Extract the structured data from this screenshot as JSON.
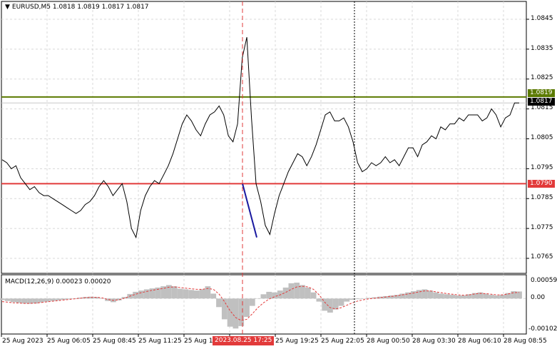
{
  "header": {
    "symbol_label": "EURUSD,M5",
    "open": "1.0818",
    "high": "1.0819",
    "low": "1.0817",
    "close": "1.0817"
  },
  "price_axis": {
    "labels": [
      "1.0845",
      "1.0835",
      "1.0825",
      "1.0815",
      "1.0805",
      "1.0795",
      "1.0785",
      "1.0775",
      "1.0765"
    ]
  },
  "tags": {
    "green_level": "1.0819",
    "current_price": "1.0817",
    "red_level": "1.0790"
  },
  "macd": {
    "label": "MACD(12,26,9) 0.00023 0.00020",
    "axis_labels": [
      "0.00059",
      "0.00",
      "-0.00102"
    ]
  },
  "time_axis": {
    "labels": [
      "25 Aug 2023",
      "25 Aug 06:05",
      "25 Aug 08:45",
      "25 Aug 11:25",
      "25 Aug 14",
      "25 Aug 19:25",
      "25 Aug 22:05",
      "28 Aug 00:50",
      "28 Aug 03:30",
      "28 Aug 06:10",
      "28 Aug 08:55"
    ],
    "crosshair_label": "2023.08.25 17:25"
  },
  "colors": {
    "green_line": "#5b7a00",
    "red_line": "#e23a3a",
    "price_line": "#000000",
    "blue_line": "#1a1aa0",
    "histogram": "#c0c0c0",
    "signal_line": "#e23a3a",
    "grid": "#d8d8d8"
  },
  "chart_data": {
    "type": "line",
    "title": "EURUSD,M5",
    "ylim": [
      1.076,
      1.0855
    ],
    "horizontal_levels": [
      1.0819,
      1.079
    ],
    "current_price": 1.0817,
    "series": [
      {
        "values": [
          1.0798,
          1.0797,
          1.0795,
          1.0796,
          1.0792,
          1.079,
          1.0788,
          1.0789,
          1.0787,
          1.0786,
          1.0786,
          1.0785,
          1.0784,
          1.0783,
          1.0782,
          1.0781,
          1.078,
          1.0781,
          1.0783,
          1.0784,
          1.0786,
          1.0789,
          1.0791,
          1.0789,
          1.0786,
          1.0788,
          1.079,
          1.0784,
          1.0775,
          1.0772,
          1.0781,
          1.0786,
          1.0789,
          1.0791,
          1.079,
          1.0793,
          1.0796,
          1.08,
          1.0805,
          1.081,
          1.0813,
          1.0811,
          1.0808,
          1.0806,
          1.081,
          1.0813,
          1.0814,
          1.0816,
          1.0813,
          1.0806,
          1.0804,
          1.081,
          1.0832,
          1.0839,
          1.0812,
          1.079,
          1.0784,
          1.0776,
          1.0773,
          1.078,
          1.0786,
          1.079,
          1.0794,
          1.0797,
          1.08,
          1.0799,
          1.0796,
          1.0799,
          1.0803,
          1.0808,
          1.0813,
          1.0814,
          1.0811,
          1.0811,
          1.0812,
          1.0809,
          1.0804,
          1.0797,
          1.0794,
          1.0795,
          1.0797,
          1.0796,
          1.0797,
          1.0799,
          1.0797,
          1.0798,
          1.0796,
          1.0799,
          1.0802,
          1.0802,
          1.0799,
          1.0803,
          1.0804,
          1.0806,
          1.0805,
          1.0809,
          1.0808,
          1.081,
          1.081,
          1.0812,
          1.0811,
          1.0813,
          1.0813,
          1.0813,
          1.0811,
          1.0812,
          1.0815,
          1.0813,
          1.0809,
          1.0812,
          1.0813,
          1.0817,
          1.0817
        ]
      }
    ],
    "macd": {
      "ylim": [
        -0.00102,
        0.00059
      ],
      "histogram": [
        -5e-05,
        -8e-05,
        -0.00012,
        -0.00014,
        -0.00016,
        -0.00017,
        -0.00016,
        -0.00013,
        -0.0001,
        -8e-05,
        -6e-05,
        -4e-05,
        -2e-05,
        0.0,
        3e-05,
        5e-05,
        6e-05,
        5e-05,
        1e-05,
        -8e-05,
        -0.00012,
        -6e-05,
        5e-05,
        0.00015,
        0.00022,
        0.00026,
        0.0003,
        0.00033,
        0.00036,
        0.0004,
        0.00044,
        0.0004,
        0.00032,
        0.0003,
        0.00028,
        0.00026,
        0.0003,
        0.0004,
        0.00016,
        -0.00028,
        -0.00068,
        -0.00092,
        -0.00098,
        -0.0009,
        -0.0006,
        -0.00024,
        0.0,
        0.00014,
        0.00022,
        0.0002,
        0.00026,
        0.00036,
        0.0005,
        0.00052,
        0.00044,
        0.00036,
        0.0002,
        -0.0001,
        -0.0004,
        -0.00046,
        -0.00036,
        -0.00024,
        -0.0001,
        -4e-05,
        -2e-05,
        0.0,
        2e-05,
        4e-05,
        6e-05,
        8e-05,
        0.0001,
        0.00012,
        0.00016,
        0.0002,
        0.00024,
        0.00028,
        0.0003,
        0.00026,
        0.0002,
        0.00016,
        0.00014,
        0.00012,
        0.0001,
        0.0001,
        0.00014,
        0.00018,
        0.0002,
        0.00016,
        0.00012,
        0.0001,
        0.00012,
        0.00018,
        0.00024,
        0.00023
      ],
      "signal": [
        -0.0001,
        -0.00012,
        -0.00014,
        -0.00015,
        -0.00016,
        -0.00016,
        -0.00015,
        -0.00013,
        -0.00011,
        -9e-05,
        -7e-05,
        -5e-05,
        -3e-05,
        -1e-05,
        1e-05,
        3e-05,
        4e-05,
        4e-05,
        2e-05,
        -3e-05,
        -6e-05,
        -4e-05,
        1e-05,
        8e-05,
        0.00014,
        0.00019,
        0.00023,
        0.00027,
        0.0003,
        0.00033,
        0.00037,
        0.00038,
        0.00036,
        0.00034,
        0.00032,
        0.0003,
        0.0003,
        0.00033,
        0.0003,
        0.00015,
        -0.0001,
        -0.0004,
        -0.00062,
        -0.00072,
        -0.00068,
        -0.0005,
        -0.0003,
        -0.00014,
        -2e-05,
        6e-05,
        0.00012,
        0.0002,
        0.0003,
        0.00038,
        0.0004,
        0.00038,
        0.0003,
        0.00012,
        -0.00012,
        -0.0003,
        -0.00034,
        -0.0003,
        -0.00022,
        -0.00014,
        -8e-05,
        -4e-05,
        -1e-05,
        1e-05,
        3e-05,
        5e-05,
        7e-05,
        9e-05,
        0.00012,
        0.00015,
        0.00018,
        0.00022,
        0.00025,
        0.00025,
        0.00022,
        0.00019,
        0.00016,
        0.00014,
        0.00012,
        0.00011,
        0.00012,
        0.00015,
        0.00017,
        0.00016,
        0.00014,
        0.00012,
        0.00012,
        0.00015,
        0.00019,
        0.0002
      ]
    }
  }
}
